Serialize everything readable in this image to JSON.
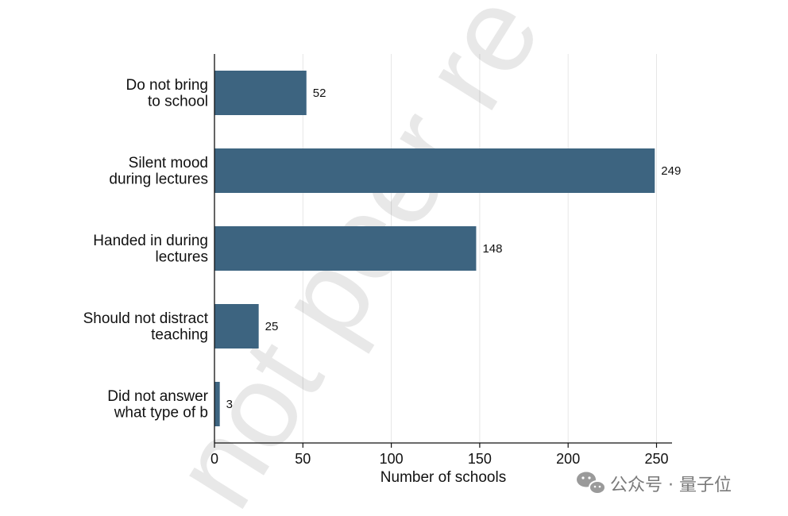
{
  "watermark": {
    "text": "not peer re"
  },
  "source_badge": {
    "text": "公众号 · 量子位"
  },
  "chart_data": {
    "type": "bar",
    "orientation": "horizontal",
    "categories": [
      [
        "Do not bring",
        "to school"
      ],
      [
        "Silent mood",
        "during lectures"
      ],
      [
        "Handed in during",
        "lectures"
      ],
      [
        "Should not distract",
        "teaching"
      ],
      [
        "Did not answer",
        "what type of b"
      ]
    ],
    "values": [
      52,
      249,
      148,
      25,
      3
    ],
    "value_labels": [
      "52",
      "249",
      "148",
      "25",
      "3"
    ],
    "xlabel": "Number of schools",
    "ylabel": "",
    "title": "",
    "xlim": [
      0,
      260
    ],
    "xticks": [
      0,
      50,
      100,
      150,
      200,
      250
    ],
    "grid": "vertical",
    "bar_color": "#3d6480",
    "grid_color": "#e6e6e6"
  }
}
